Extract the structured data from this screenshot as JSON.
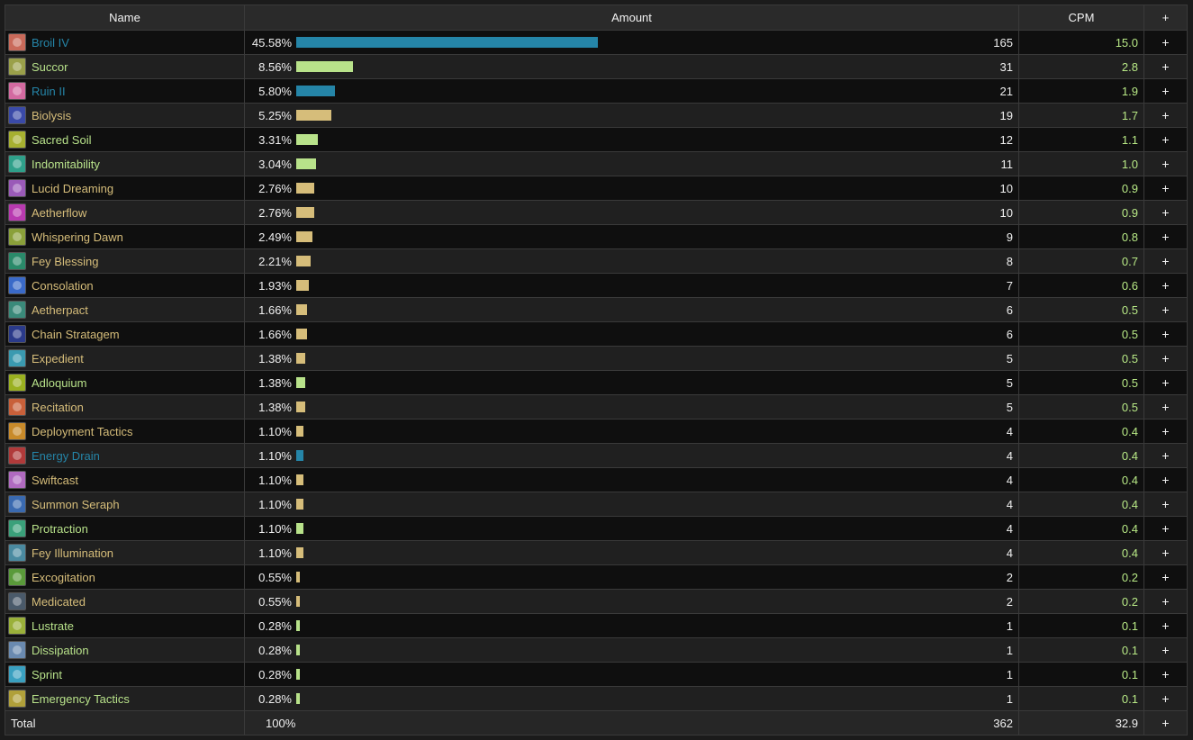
{
  "columns": {
    "name": "Name",
    "amount": "Amount",
    "cpm": "CPM",
    "plus": "+"
  },
  "colors": {
    "blue": "#2585a8",
    "green": "#b8e28a",
    "tan": "#d6bd7a"
  },
  "rows": [
    {
      "name": "Broil IV",
      "pct": "45.58%",
      "frac": 0.4558,
      "count": "165",
      "cpm": "15.0",
      "color": "blue",
      "icon": "broil-icon",
      "iconColor": "#c96a5a"
    },
    {
      "name": "Succor",
      "pct": "8.56%",
      "frac": 0.0856,
      "count": "31",
      "cpm": "2.8",
      "color": "green",
      "icon": "succor-icon",
      "iconColor": "#9aa04a"
    },
    {
      "name": "Ruin II",
      "pct": "5.80%",
      "frac": 0.058,
      "count": "21",
      "cpm": "1.9",
      "color": "blue",
      "icon": "ruin-icon",
      "iconColor": "#d36aa0"
    },
    {
      "name": "Biolysis",
      "pct": "5.25%",
      "frac": 0.0525,
      "count": "19",
      "cpm": "1.7",
      "color": "tan",
      "icon": "biolysis-icon",
      "iconColor": "#3a4aa8"
    },
    {
      "name": "Sacred Soil",
      "pct": "3.31%",
      "frac": 0.0331,
      "count": "12",
      "cpm": "1.1",
      "color": "green",
      "icon": "sacred-soil-icon",
      "iconColor": "#a6b030"
    },
    {
      "name": "Indomitability",
      "pct": "3.04%",
      "frac": 0.0304,
      "count": "11",
      "cpm": "1.0",
      "color": "green",
      "icon": "indomitability-icon",
      "iconColor": "#2fa08a"
    },
    {
      "name": "Lucid Dreaming",
      "pct": "2.76%",
      "frac": 0.0276,
      "count": "10",
      "cpm": "0.9",
      "color": "tan",
      "icon": "lucid-dreaming-icon",
      "iconColor": "#9a5ab8"
    },
    {
      "name": "Aetherflow",
      "pct": "2.76%",
      "frac": 0.0276,
      "count": "10",
      "cpm": "0.9",
      "color": "tan",
      "icon": "aetherflow-icon",
      "iconColor": "#b83ab0"
    },
    {
      "name": "Whispering Dawn",
      "pct": "2.49%",
      "frac": 0.0249,
      "count": "9",
      "cpm": "0.8",
      "color": "tan",
      "icon": "whispering-dawn-icon",
      "iconColor": "#8aa03a"
    },
    {
      "name": "Fey Blessing",
      "pct": "2.21%",
      "frac": 0.0221,
      "count": "8",
      "cpm": "0.7",
      "color": "tan",
      "icon": "fey-blessing-icon",
      "iconColor": "#2a8a6a"
    },
    {
      "name": "Consolation",
      "pct": "1.93%",
      "frac": 0.0193,
      "count": "7",
      "cpm": "0.6",
      "color": "tan",
      "icon": "consolation-icon",
      "iconColor": "#3a6ac8"
    },
    {
      "name": "Aetherpact",
      "pct": "1.66%",
      "frac": 0.0166,
      "count": "6",
      "cpm": "0.5",
      "color": "tan",
      "icon": "aetherpact-icon",
      "iconColor": "#3a8a7a"
    },
    {
      "name": "Chain Stratagem",
      "pct": "1.66%",
      "frac": 0.0166,
      "count": "6",
      "cpm": "0.5",
      "color": "tan",
      "icon": "chain-stratagem-icon",
      "iconColor": "#2a3a8a"
    },
    {
      "name": "Expedient",
      "pct": "1.38%",
      "frac": 0.0138,
      "count": "5",
      "cpm": "0.5",
      "color": "tan",
      "icon": "expedient-icon",
      "iconColor": "#3a9ab0"
    },
    {
      "name": "Adloquium",
      "pct": "1.38%",
      "frac": 0.0138,
      "count": "5",
      "cpm": "0.5",
      "color": "green",
      "icon": "adloquium-icon",
      "iconColor": "#9ab020"
    },
    {
      "name": "Recitation",
      "pct": "1.38%",
      "frac": 0.0138,
      "count": "5",
      "cpm": "0.5",
      "color": "tan",
      "icon": "recitation-icon",
      "iconColor": "#c8603a"
    },
    {
      "name": "Deployment Tactics",
      "pct": "1.10%",
      "frac": 0.011,
      "count": "4",
      "cpm": "0.4",
      "color": "tan",
      "icon": "deployment-tactics-icon",
      "iconColor": "#c88a2a"
    },
    {
      "name": "Energy Drain",
      "pct": "1.10%",
      "frac": 0.011,
      "count": "4",
      "cpm": "0.4",
      "color": "blue",
      "icon": "energy-drain-icon",
      "iconColor": "#b03a3a"
    },
    {
      "name": "Swiftcast",
      "pct": "1.10%",
      "frac": 0.011,
      "count": "4",
      "cpm": "0.4",
      "color": "tan",
      "icon": "swiftcast-icon",
      "iconColor": "#b06ac0"
    },
    {
      "name": "Summon Seraph",
      "pct": "1.10%",
      "frac": 0.011,
      "count": "4",
      "cpm": "0.4",
      "color": "tan",
      "icon": "summon-seraph-icon",
      "iconColor": "#3a6ab0"
    },
    {
      "name": "Protraction",
      "pct": "1.10%",
      "frac": 0.011,
      "count": "4",
      "cpm": "0.4",
      "color": "green",
      "icon": "protraction-icon",
      "iconColor": "#3aa07a"
    },
    {
      "name": "Fey Illumination",
      "pct": "1.10%",
      "frac": 0.011,
      "count": "4",
      "cpm": "0.4",
      "color": "tan",
      "icon": "fey-illumination-icon",
      "iconColor": "#4a8aa0"
    },
    {
      "name": "Excogitation",
      "pct": "0.55%",
      "frac": 0.0055,
      "count": "2",
      "cpm": "0.2",
      "color": "tan",
      "icon": "excogitation-icon",
      "iconColor": "#5a9a3a"
    },
    {
      "name": "Medicated",
      "pct": "0.55%",
      "frac": 0.0055,
      "count": "2",
      "cpm": "0.2",
      "color": "tan",
      "icon": "medicated-icon",
      "iconColor": "#4a5a6a"
    },
    {
      "name": "Lustrate",
      "pct": "0.28%",
      "frac": 0.0028,
      "count": "1",
      "cpm": "0.1",
      "color": "green",
      "icon": "lustrate-icon",
      "iconColor": "#9ab03a"
    },
    {
      "name": "Dissipation",
      "pct": "0.28%",
      "frac": 0.0028,
      "count": "1",
      "cpm": "0.1",
      "color": "green",
      "icon": "dissipation-icon",
      "iconColor": "#6a8ab0"
    },
    {
      "name": "Sprint",
      "pct": "0.28%",
      "frac": 0.0028,
      "count": "1",
      "cpm": "0.1",
      "color": "green",
      "icon": "sprint-icon",
      "iconColor": "#3aa0c0"
    },
    {
      "name": "Emergency Tactics",
      "pct": "0.28%",
      "frac": 0.0028,
      "count": "1",
      "cpm": "0.1",
      "color": "green",
      "icon": "emergency-tactics-icon",
      "iconColor": "#b0a03a"
    }
  ],
  "total": {
    "label": "Total",
    "pct": "100%",
    "count": "362",
    "cpm": "32.9",
    "plus": "+"
  }
}
